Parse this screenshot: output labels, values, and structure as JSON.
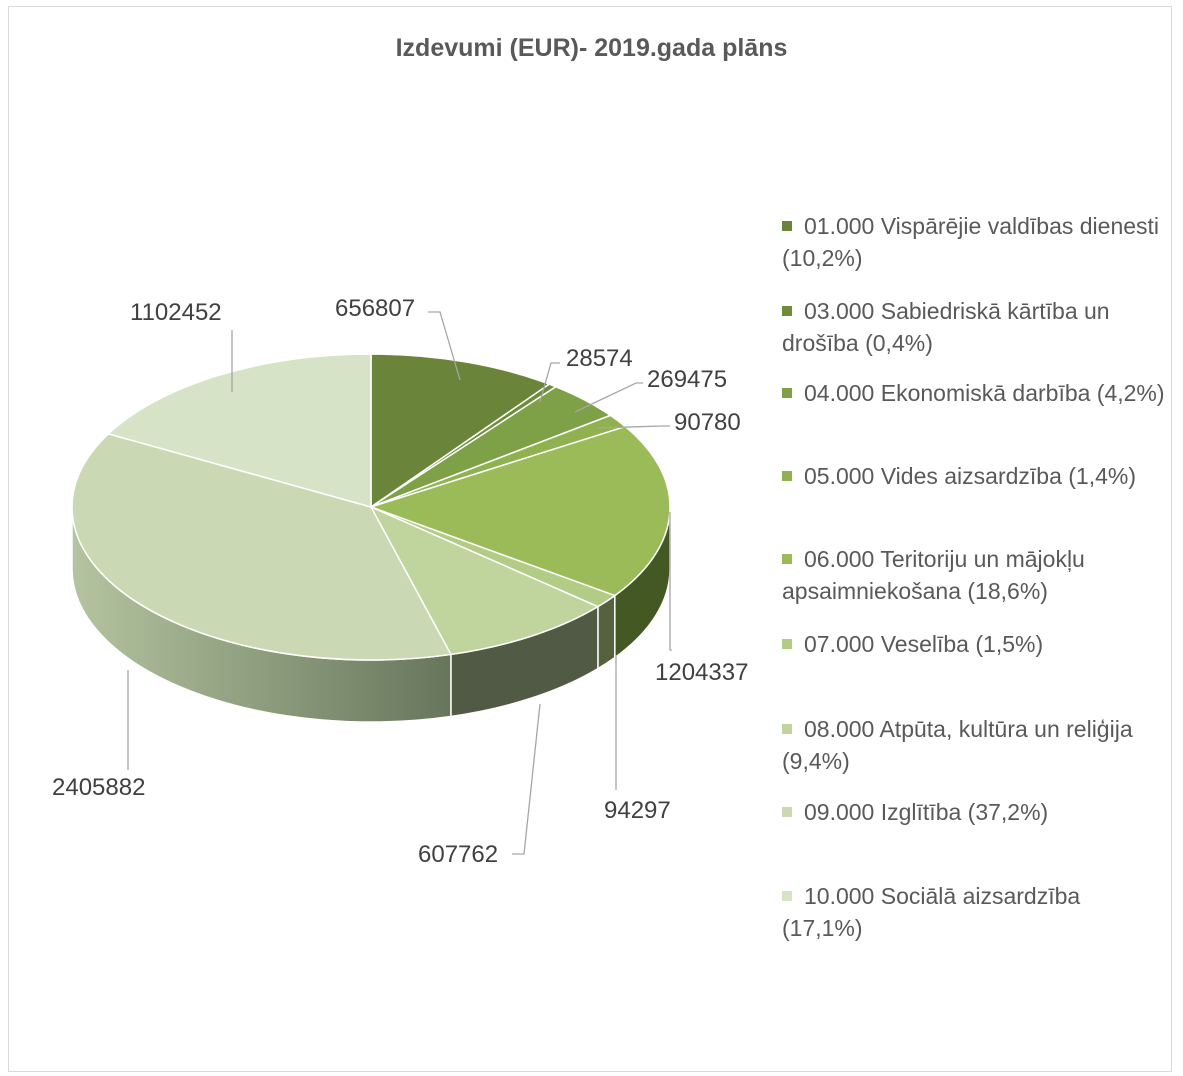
{
  "chart_data": {
    "type": "pie",
    "title": "Izdevumi (EUR)- 2019.gada plāns",
    "categories": [
      "01.000 Vispārējie valdības dienesti   (10,2%)",
      "03.000 Sabiedriskā kārtība un drošība    (0,4%)",
      "04.000 Ekonomiskā darbība (4,2%)",
      "05.000 Vides aizsardzība (1,4%)",
      "06.000 Teritoriju un mājokļu apsaimniekošana (18,6%)",
      "07.000 Veselība  (1,5%)",
      "08.000 Atpūta, kultūra un reliģija   (9,4%)",
      "09.000 Izglītība  (37,2%)",
      "10.000 Sociālā aizsardzība (17,1%)"
    ],
    "values": [
      656807,
      28574,
      269475,
      90780,
      1204337,
      94297,
      607762,
      2405882,
      1102452
    ],
    "data_labels": [
      "656807",
      "28574",
      "269475",
      "90780",
      "1204337",
      "94297",
      "607762",
      "2405882",
      "1102452"
    ],
    "colors": [
      "#6a8539",
      "#6f8c3b",
      "#7ea046",
      "#8fb14f",
      "#9bbb59",
      "#b2cb85",
      "#c0d59d",
      "#cad9b3",
      "#d6e3c6"
    ],
    "side_colors": [
      "#3f5220",
      "#415421",
      "#4a5d2a",
      "#4f602c",
      "#435822",
      "#55613f",
      "#515a44",
      "#a3b28f",
      "#a3b28f"
    ],
    "legend_position": "right",
    "style": "3d"
  }
}
